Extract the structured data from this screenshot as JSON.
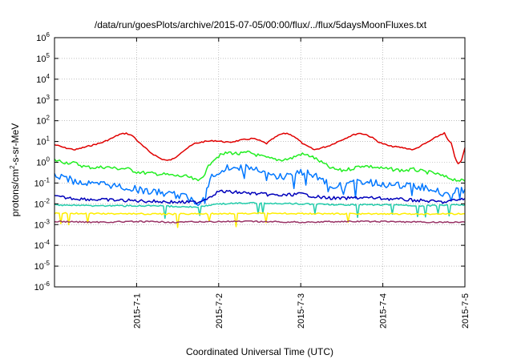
{
  "chart_data": {
    "type": "line",
    "title": "/data/run/goesPlots/archive/2015-07-05/00:00/flux/../flux/5daysMoonFluxes.txt",
    "xlabel": "Coordinated Universal Time (UTC)",
    "ylabel": "protons/cm2-s-sr-MeV",
    "ylabel_parts": {
      "base": "protons/cm",
      "sup": "2",
      "rest": "-s-sr-MeV"
    },
    "y_scale": "log",
    "ylim": [
      1e-06,
      1000000.0
    ],
    "y_ticks": [
      {
        "value": 1e-06,
        "base": "10",
        "exp": "-6"
      },
      {
        "value": 1e-05,
        "base": "10",
        "exp": "-5"
      },
      {
        "value": 0.0001,
        "base": "10",
        "exp": "-4"
      },
      {
        "value": 0.001,
        "base": "10",
        "exp": "-3"
      },
      {
        "value": 0.01,
        "base": "10",
        "exp": "-2"
      },
      {
        "value": 0.1,
        "base": "10",
        "exp": "-1"
      },
      {
        "value": 1,
        "base": "10",
        "exp": "0"
      },
      {
        "value": 10,
        "base": "10",
        "exp": "1"
      },
      {
        "value": 100,
        "base": "10",
        "exp": "2"
      },
      {
        "value": 1000,
        "base": "10",
        "exp": "3"
      },
      {
        "value": 10000,
        "base": "10",
        "exp": "4"
      },
      {
        "value": 100000,
        "base": "10",
        "exp": "5"
      },
      {
        "value": 1000000,
        "base": "10",
        "exp": "6"
      }
    ],
    "xlim": [
      "2015-06-30T00:00",
      "2015-07-05T00:00"
    ],
    "x_ticks": [
      {
        "value": "2015-07-01T00:00",
        "label": "2015-7-1"
      },
      {
        "value": "2015-07-02T00:00",
        "label": "2015-7-2"
      },
      {
        "value": "2015-07-03T00:00",
        "label": "2015-7-3"
      },
      {
        "value": "2015-07-04T00:00",
        "label": "2015-7-4"
      },
      {
        "value": "2015-07-05T00:00",
        "label": "2015-7-5"
      }
    ],
    "grid": true,
    "series": [
      {
        "color": "#e00000",
        "x": [
          "2015-06-30T00:00",
          "2015-06-30T03:00",
          "2015-06-30T06:00",
          "2015-06-30T10:00",
          "2015-06-30T14:00",
          "2015-06-30T17:00",
          "2015-06-30T19:00",
          "2015-06-30T21:00",
          "2015-06-30T23:00",
          "2015-07-01T01:00",
          "2015-07-01T04:00",
          "2015-07-01T07:00",
          "2015-07-01T09:00",
          "2015-07-01T11:00",
          "2015-07-01T13:00",
          "2015-07-01T15:00",
          "2015-07-01T17:00",
          "2015-07-01T20:00",
          "2015-07-01T23:00",
          "2015-07-02T03:00",
          "2015-07-02T07:00",
          "2015-07-02T10:00",
          "2015-07-02T12:00",
          "2015-07-02T14:00",
          "2015-07-02T16:00",
          "2015-07-02T18:00",
          "2015-07-02T20:00",
          "2015-07-02T22:00",
          "2015-07-03T01:00",
          "2015-07-03T04:00",
          "2015-07-03T08:00",
          "2015-07-03T12:00",
          "2015-07-03T15:00",
          "2015-07-03T17:00",
          "2015-07-03T19:00",
          "2015-07-03T21:00",
          "2015-07-03T23:00",
          "2015-07-04T02:00",
          "2015-07-04T06:00",
          "2015-07-04T09:00",
          "2015-07-04T11:00",
          "2015-07-04T13:00",
          "2015-07-04T15:00",
          "2015-07-04T17:00",
          "2015-07-04T18:00",
          "2015-07-04T19:00",
          "2015-07-04T20:00",
          "2015-07-04T21:00",
          "2015-07-04T22:00",
          "2015-07-04T23:00",
          "2015-07-05T00:00"
        ],
        "y": [
          7,
          5,
          4,
          6,
          9,
          15,
          22,
          25,
          18,
          8,
          3,
          1.5,
          1.2,
          1.5,
          3,
          5,
          8,
          10,
          11,
          9,
          12,
          14,
          11,
          8,
          14,
          22,
          25,
          18,
          7,
          4,
          6,
          12,
          20,
          25,
          22,
          15,
          9,
          6,
          5,
          4,
          6,
          9,
          14,
          22,
          25,
          12,
          8,
          2,
          0.8,
          1.2,
          5
        ]
      },
      {
        "color": "#22ee22",
        "x": [
          "2015-06-30T00:00",
          "2015-06-30T03:00",
          "2015-06-30T06:00",
          "2015-06-30T09:00",
          "2015-06-30T12:00",
          "2015-06-30T15:00",
          "2015-06-30T18:00",
          "2015-06-30T21:00",
          "2015-07-01T00:00",
          "2015-07-01T03:00",
          "2015-07-01T06:00",
          "2015-07-01T09:00",
          "2015-07-01T12:00",
          "2015-07-01T15:00",
          "2015-07-01T18:00",
          "2015-07-01T20:00",
          "2015-07-01T22:00",
          "2015-07-02T00:00",
          "2015-07-02T03:00",
          "2015-07-02T06:00",
          "2015-07-02T09:00",
          "2015-07-02T12:00",
          "2015-07-02T15:00",
          "2015-07-02T18:00",
          "2015-07-02T21:00",
          "2015-07-03T00:00",
          "2015-07-03T03:00",
          "2015-07-03T06:00",
          "2015-07-03T09:00",
          "2015-07-03T12:00",
          "2015-07-03T15:00",
          "2015-07-03T18:00",
          "2015-07-03T21:00",
          "2015-07-04T00:00",
          "2015-07-04T03:00",
          "2015-07-04T06:00",
          "2015-07-04T09:00",
          "2015-07-04T12:00",
          "2015-07-04T15:00",
          "2015-07-04T18:00",
          "2015-07-04T21:00",
          "2015-07-05T00:00"
        ],
        "y": [
          1.3,
          1,
          0.9,
          0.6,
          0.55,
          0.6,
          0.5,
          0.5,
          0.35,
          0.3,
          0.28,
          0.25,
          0.22,
          0.2,
          0.12,
          0.3,
          1.2,
          2,
          3,
          2.5,
          3,
          2,
          1.5,
          1.3,
          1.5,
          2.5,
          2,
          1,
          0.5,
          0.4,
          0.5,
          0.7,
          0.6,
          0.5,
          0.45,
          0.4,
          0.45,
          0.35,
          0.3,
          0.2,
          0.15,
          0.12
        ]
      },
      {
        "color": "#0077ff",
        "x": [
          "2015-06-30T00:00",
          "2015-06-30T03:00",
          "2015-06-30T06:00",
          "2015-06-30T09:00",
          "2015-06-30T12:00",
          "2015-06-30T15:00",
          "2015-06-30T18:00",
          "2015-06-30T21:00",
          "2015-07-01T00:00",
          "2015-07-01T03:00",
          "2015-07-01T06:00",
          "2015-07-01T09:00",
          "2015-07-01T12:00",
          "2015-07-01T15:00",
          "2015-07-01T18:00",
          "2015-07-01T20:00",
          "2015-07-01T22:00",
          "2015-07-02T00:00",
          "2015-07-02T03:00",
          "2015-07-02T06:00",
          "2015-07-02T09:00",
          "2015-07-02T12:00",
          "2015-07-02T15:00",
          "2015-07-02T18:00",
          "2015-07-02T21:00",
          "2015-07-03T00:00",
          "2015-07-03T03:00",
          "2015-07-03T06:00",
          "2015-07-03T09:00",
          "2015-07-03T12:00",
          "2015-07-03T15:00",
          "2015-07-03T18:00",
          "2015-07-03T21:00",
          "2015-07-04T00:00",
          "2015-07-04T03:00",
          "2015-07-04T06:00",
          "2015-07-04T09:00",
          "2015-07-04T12:00",
          "2015-07-04T15:00",
          "2015-07-04T18:00",
          "2015-07-04T21:00",
          "2015-07-05T00:00"
        ],
        "y": [
          0.25,
          0.18,
          0.12,
          0.1,
          0.08,
          0.09,
          0.07,
          0.06,
          0.05,
          0.04,
          0.035,
          0.03,
          0.025,
          0.02,
          0.01,
          0.04,
          0.2,
          0.35,
          0.6,
          0.5,
          0.55,
          0.35,
          0.25,
          0.2,
          0.22,
          0.35,
          0.3,
          0.15,
          0.08,
          0.07,
          0.09,
          0.12,
          0.1,
          0.09,
          0.08,
          0.07,
          0.08,
          0.06,
          0.05,
          0.03,
          0.04,
          0.05
        ]
      },
      {
        "color": "#0000bb",
        "x": [
          "2015-06-30T00:00",
          "2015-06-30T06:00",
          "2015-06-30T12:00",
          "2015-06-30T18:00",
          "2015-07-01T00:00",
          "2015-07-01T06:00",
          "2015-07-01T12:00",
          "2015-07-01T18:00",
          "2015-07-01T21:00",
          "2015-07-02T00:00",
          "2015-07-02T06:00",
          "2015-07-02T12:00",
          "2015-07-02T18:00",
          "2015-07-03T00:00",
          "2015-07-03T06:00",
          "2015-07-03T12:00",
          "2015-07-03T18:00",
          "2015-07-04T00:00",
          "2015-07-04T06:00",
          "2015-07-04T12:00",
          "2015-07-04T18:00",
          "2015-07-05T00:00"
        ],
        "y": [
          0.022,
          0.018,
          0.016,
          0.015,
          0.014,
          0.013,
          0.012,
          0.012,
          0.02,
          0.04,
          0.035,
          0.03,
          0.025,
          0.03,
          0.02,
          0.018,
          0.02,
          0.018,
          0.016,
          0.014,
          0.012,
          0.018
        ]
      },
      {
        "color": "#22ccaa",
        "x": [
          "2015-06-30T00:00",
          "2015-06-30T12:00",
          "2015-07-01T00:00",
          "2015-07-01T12:00",
          "2015-07-01T18:00",
          "2015-07-02T00:00",
          "2015-07-02T12:00",
          "2015-07-03T00:00",
          "2015-07-03T12:00",
          "2015-07-04T00:00",
          "2015-07-04T12:00",
          "2015-07-05T00:00"
        ],
        "y": [
          0.009,
          0.008,
          0.008,
          0.0075,
          0.007,
          0.01,
          0.011,
          0.01,
          0.009,
          0.009,
          0.008,
          0.009
        ]
      },
      {
        "color": "#ffee00",
        "x": [
          "2015-06-30T00:00",
          "2015-06-30T12:00",
          "2015-07-01T00:00",
          "2015-07-01T12:00",
          "2015-07-02T00:00",
          "2015-07-02T12:00",
          "2015-07-03T00:00",
          "2015-07-03T12:00",
          "2015-07-04T00:00",
          "2015-07-04T12:00",
          "2015-07-05T00:00"
        ],
        "y": [
          0.0035,
          0.0034,
          0.0033,
          0.0032,
          0.0034,
          0.0035,
          0.0034,
          0.0033,
          0.0033,
          0.0032,
          0.0033
        ]
      },
      {
        "color": "#993366",
        "x": [
          "2015-06-30T00:00",
          "2015-06-30T12:00",
          "2015-07-01T00:00",
          "2015-07-01T12:00",
          "2015-07-02T00:00",
          "2015-07-02T12:00",
          "2015-07-03T00:00",
          "2015-07-03T12:00",
          "2015-07-04T00:00",
          "2015-07-04T12:00",
          "2015-07-05T00:00"
        ],
        "y": [
          0.0014,
          0.0013,
          0.0014,
          0.0013,
          0.0014,
          0.0014,
          0.0013,
          0.0014,
          0.0014,
          0.0013,
          0.0013
        ]
      }
    ]
  }
}
